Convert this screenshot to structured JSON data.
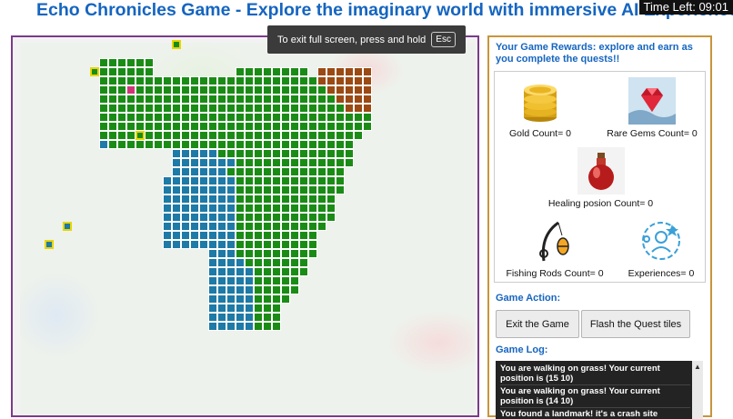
{
  "header": {
    "title": "Echo Chronicles Game - Explore the imaginary world with immersive AI Experience!",
    "timer": "Time Left: 09:01"
  },
  "fullscreen_toast": {
    "text": "To exit full screen, press and hold",
    "key": "Esc"
  },
  "rewards": {
    "heading": "Your Game Rewards: explore and earn as you complete the quests!!",
    "items": [
      {
        "label": "Gold Count= 0",
        "icon": "gold-coins-icon"
      },
      {
        "label": "Rare Gems Count= 0",
        "icon": "gem-icon"
      },
      {
        "label": "Healing posion Count= 0",
        "icon": "potion-icon"
      },
      {
        "label": "Fishing Rods Count= 0",
        "icon": "fishing-rod-icon"
      },
      {
        "label": "Experiences= 0",
        "icon": "experience-icon"
      }
    ]
  },
  "actions": {
    "heading": "Game Action:",
    "exit_label": "Exit the Game",
    "flash_label": "Flash the Quest tiles"
  },
  "log": {
    "heading": "Game Log:",
    "entries": [
      "You are walking on grass! Your current position is (15 10)",
      "You are walking on grass! Your current position is (14 10)",
      "You found a landmark! it's a crash site"
    ]
  },
  "colors": {
    "grass": "#1a8c16",
    "water": "#1e7aa6",
    "dirt": "#9b4a14",
    "player": "#d0357a",
    "quest_outline": "#e8d600",
    "title": "#1565c0"
  }
}
